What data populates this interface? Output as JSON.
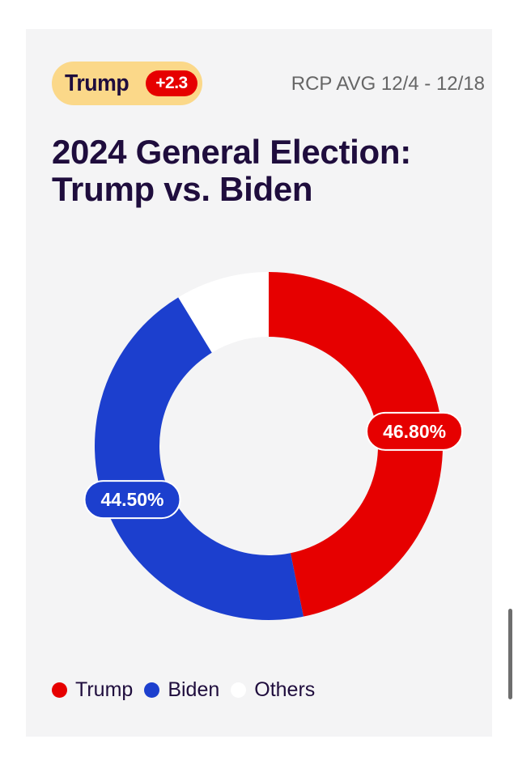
{
  "header": {
    "leader_name": "Trump",
    "leader_margin": "+2.3",
    "average_label": "RCP AVG 12/4 - 12/18"
  },
  "title": "2024 General Election: Trump vs. Biden",
  "chart_data": {
    "type": "pie",
    "style": "donut",
    "categories": [
      "Trump",
      "Biden",
      "Others"
    ],
    "values": [
      46.8,
      44.5,
      8.7
    ],
    "labels": [
      "46.80%",
      "44.50%",
      ""
    ],
    "colors": [
      "#e60000",
      "#1c3fce",
      "#ffffff"
    ],
    "legend_position": "bottom-left"
  },
  "legend": [
    {
      "label": "Trump",
      "color": "#e60000"
    },
    {
      "label": "Biden",
      "color": "#1c3fce"
    },
    {
      "label": "Others",
      "color": "#ffffff"
    }
  ]
}
